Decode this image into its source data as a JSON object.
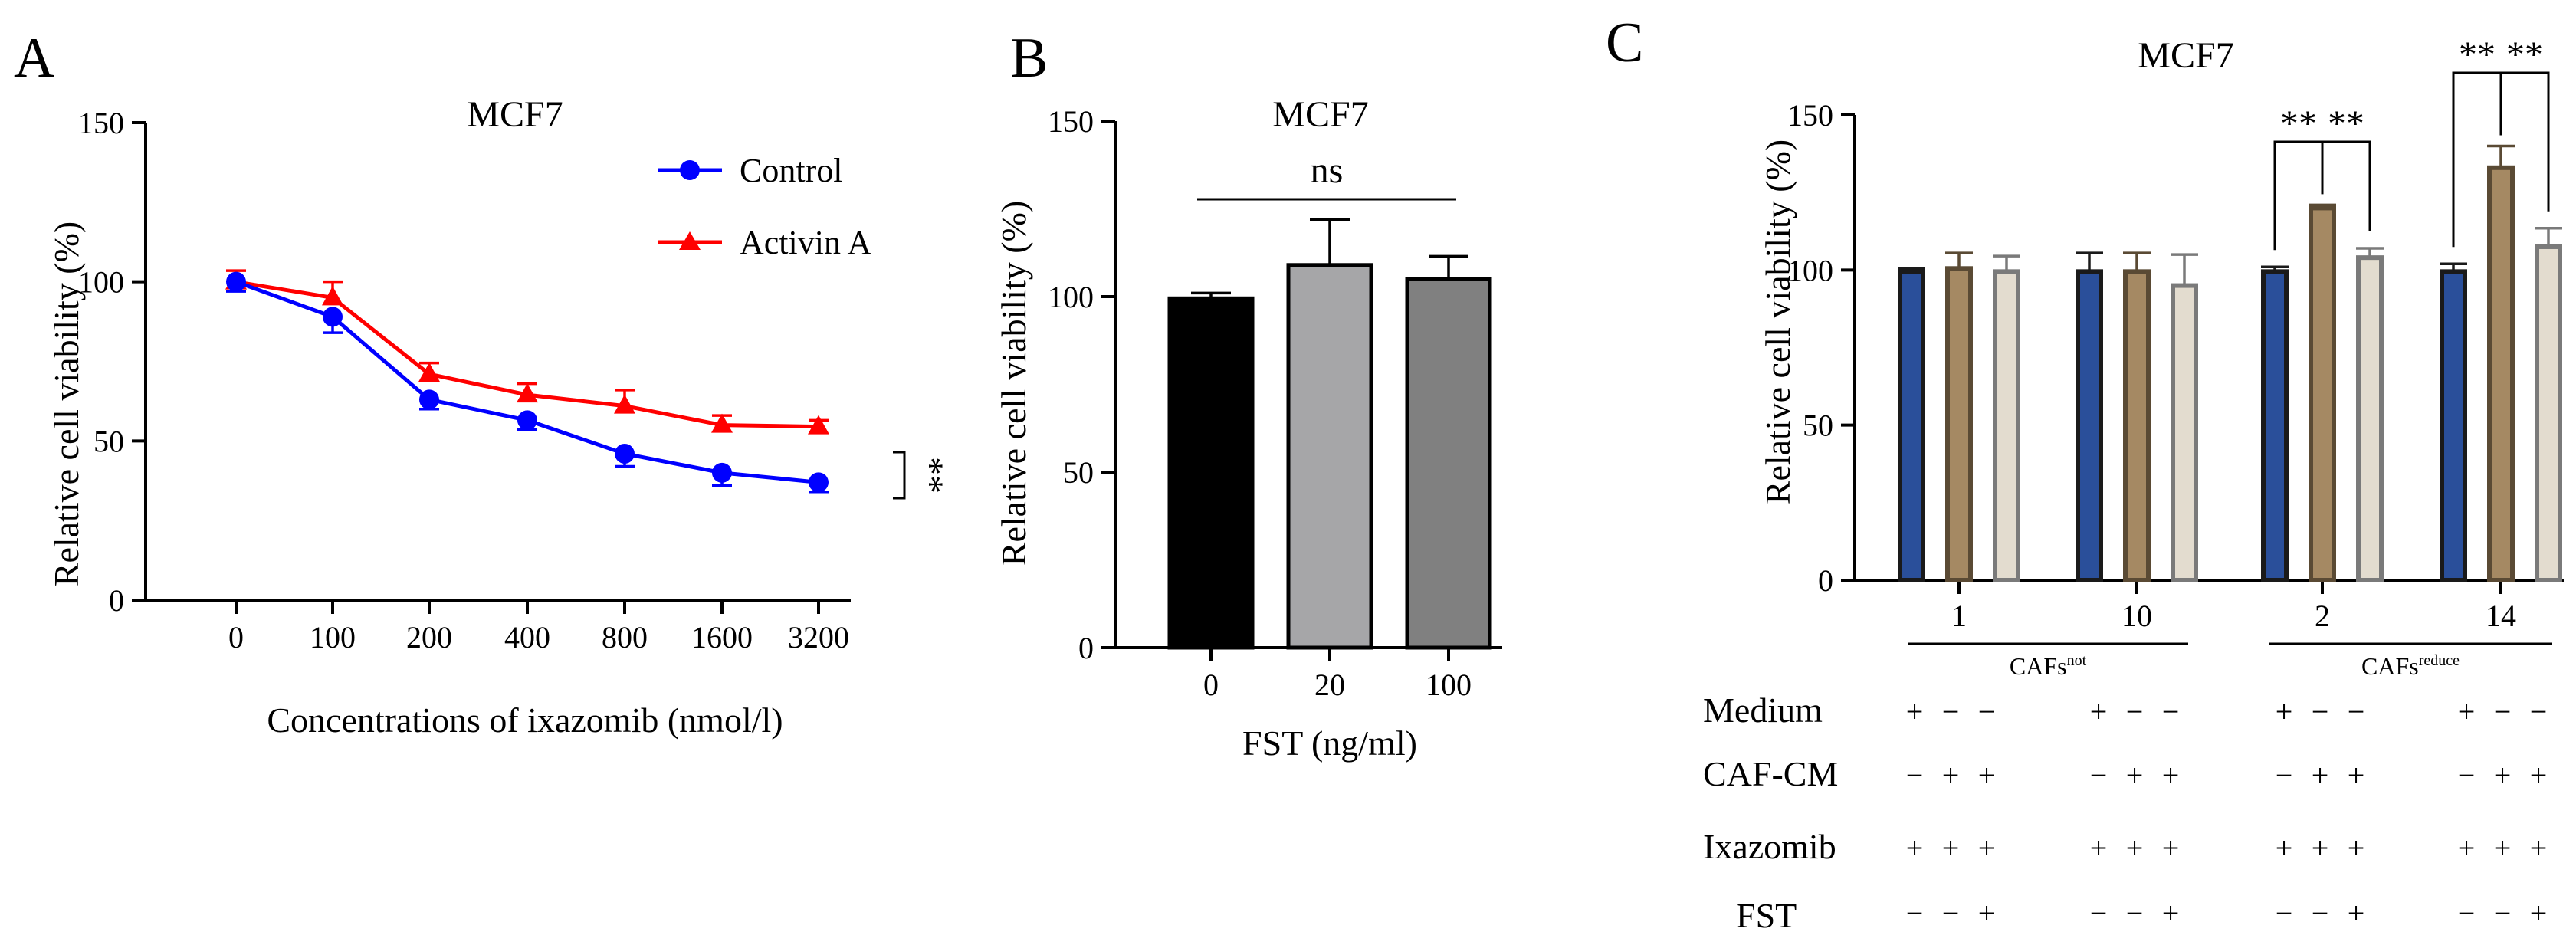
{
  "panels": [
    {
      "letter": "A",
      "title": "MCF7",
      "chart_data": {
        "type": "line",
        "categories": [
          "0",
          "100",
          "200",
          "400",
          "800",
          "1600",
          "3200"
        ],
        "series": [
          {
            "name": "Control",
            "color": "#0000ff",
            "marker": "circle",
            "values": [
              100,
              89,
              63,
              56.5,
              46,
              40,
              37
            ],
            "errors": [
              3,
              5,
              3,
              3,
              4,
              4,
              3
            ]
          },
          {
            "name": "Activin A",
            "color": "#ff0000",
            "marker": "triangle",
            "values": [
              100,
              95,
              71,
              64.5,
              61,
              55,
              54.5
            ],
            "errors": [
              3.5,
              5,
              3.5,
              3.5,
              5,
              3,
              2
            ]
          }
        ],
        "ylim": [
          0,
          150
        ],
        "yticks": [
          0,
          50,
          100,
          150
        ],
        "xlabel": "Concentrations of ixazomib (nmol/l)",
        "ylabel": "Relative cell viability (%)",
        "significance": "**"
      }
    },
    {
      "letter": "B",
      "title": "MCF7",
      "chart_data": {
        "type": "bar",
        "categories": [
          "0",
          "20",
          "100"
        ],
        "values": [
          99.5,
          109,
          105
        ],
        "errors": [
          1.5,
          13,
          6.5
        ],
        "colors": [
          "#000000",
          "#a6a6a8",
          "#808080"
        ],
        "ylim": [
          0,
          150
        ],
        "yticks": [
          0,
          50,
          100,
          150
        ],
        "xlabel": "FST (ng/ml)",
        "ylabel": "Relative cell viability (%)",
        "significance": "ns"
      }
    },
    {
      "letter": "C",
      "title": "MCF7",
      "chart_data": {
        "type": "bar",
        "categories": [
          "1",
          "10",
          "2",
          "14"
        ],
        "groups": [
          "CAFs",
          "CAFs"
        ],
        "group_sups": [
          "not",
          "reduce"
        ],
        "series_colors": [
          "#2a4f9a",
          "#a58963",
          "#e3dccf"
        ],
        "series_edges": [
          "#1a1a1a",
          "#5a4a34",
          "#7a7a7a"
        ],
        "values": [
          [
            99.5,
            100.5,
            99.5
          ],
          [
            99.5,
            99.5,
            95
          ],
          [
            99.5,
            120,
            104
          ],
          [
            99.5,
            133,
            107.5
          ]
        ],
        "errors": [
          [
            1,
            5,
            5
          ],
          [
            6,
            6,
            10
          ],
          [
            1.5,
            1,
            3
          ],
          [
            2.5,
            7,
            6
          ]
        ],
        "ylim": [
          0,
          150
        ],
        "yticks": [
          0,
          50,
          100,
          150
        ],
        "ylabel": "Relative cell viability (%)",
        "significance": "**",
        "condition_labels": [
          "Medium",
          "CAF-CM",
          "Ixazomib",
          "FST"
        ],
        "conditions": [
          [
            "+",
            "−",
            "−",
            "+",
            "−",
            "−",
            "+",
            "−",
            "−",
            "+",
            "−",
            "−"
          ],
          [
            "−",
            "+",
            "+",
            "−",
            "+",
            "+",
            "−",
            "+",
            "+",
            "−",
            "+",
            "+"
          ],
          [
            "+",
            "+",
            "+",
            "+",
            "+",
            "+",
            "+",
            "+",
            "+",
            "+",
            "+",
            "+"
          ],
          [
            "−",
            "−",
            "+",
            "−",
            "−",
            "+",
            "−",
            "−",
            "+",
            "−",
            "−",
            "+"
          ]
        ]
      }
    }
  ]
}
